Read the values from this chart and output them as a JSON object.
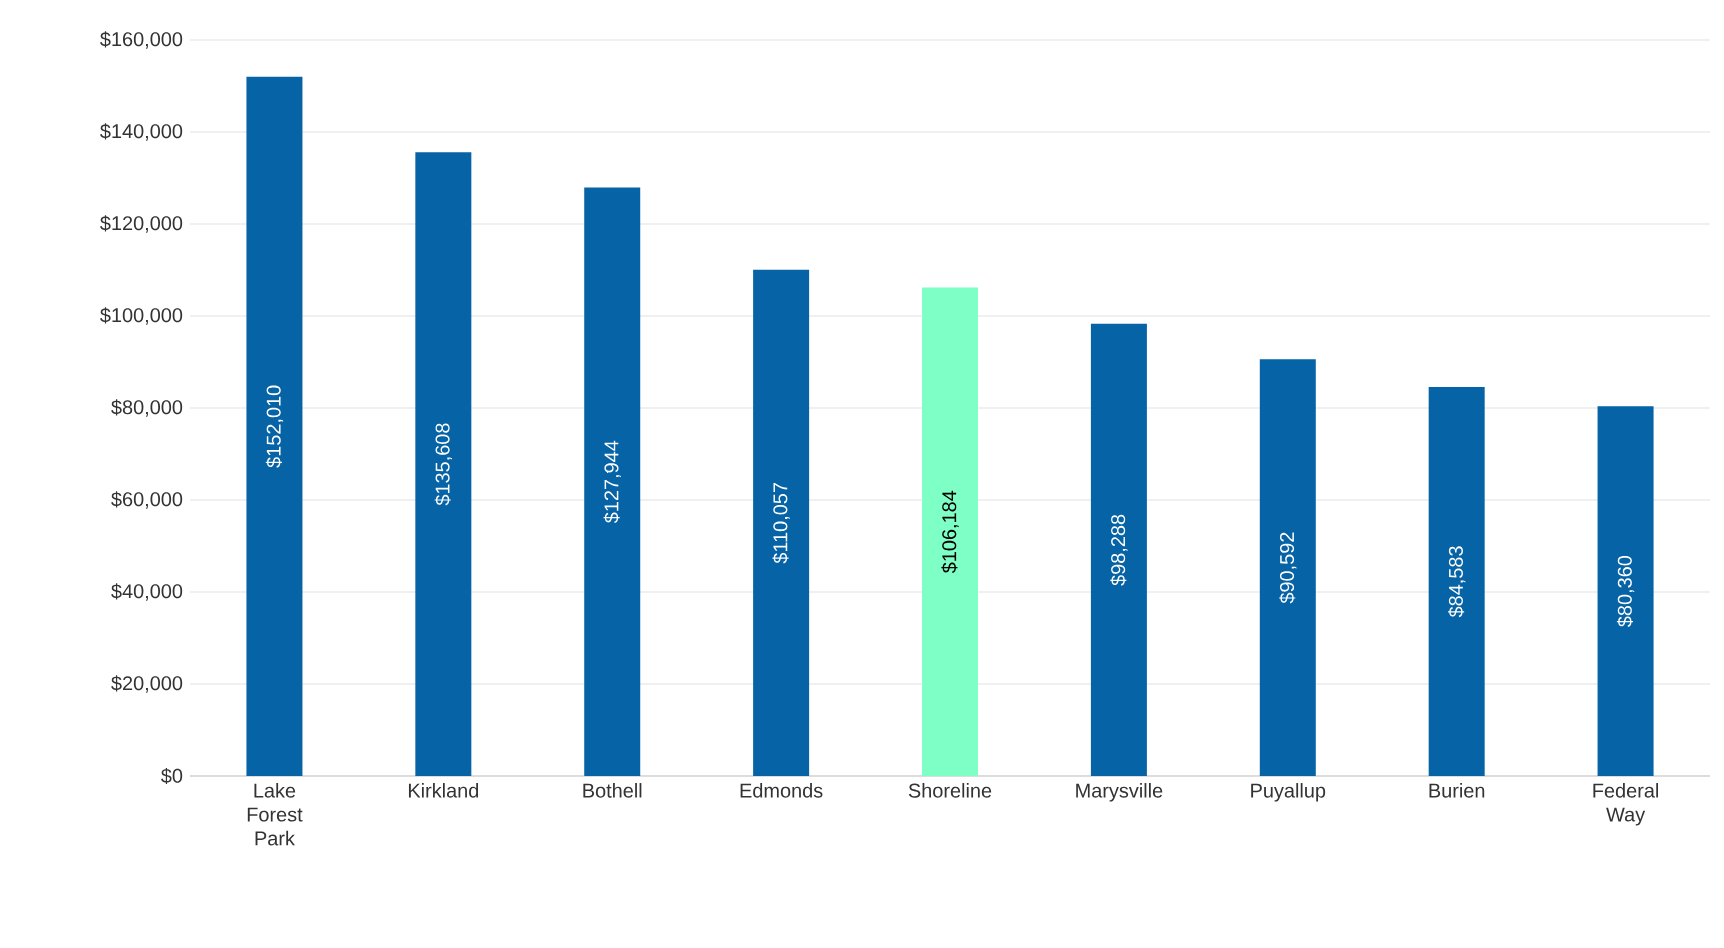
{
  "chart_data": {
    "type": "bar",
    "categories": [
      "Lake Forest Park",
      "Kirkland",
      "Bothell",
      "Edmonds",
      "Shoreline",
      "Marysville",
      "Puyallup",
      "Burien",
      "Federal Way"
    ],
    "values": [
      152010,
      135608,
      127944,
      110057,
      106184,
      98288,
      90592,
      84583,
      80360
    ],
    "value_labels": [
      "$152,010",
      "$135,608",
      "$127,944",
      "$110,057",
      "$106,184",
      "$98,288",
      "$90,592",
      "$84,583",
      "$80,360"
    ],
    "colors": [
      "#0563a6",
      "#0563a6",
      "#0563a6",
      "#0563a6",
      "#7effc5",
      "#0563a6",
      "#0563a6",
      "#0563a6",
      "#0563a6"
    ],
    "ylim": [
      0,
      160000
    ],
    "yticks": [
      {
        "value": 0,
        "label": "$0"
      },
      {
        "value": 20000,
        "label": "$20,000"
      },
      {
        "value": 40000,
        "label": "$40,000"
      },
      {
        "value": 60000,
        "label": "$60,000"
      },
      {
        "value": 80000,
        "label": "$80,000"
      },
      {
        "value": 100000,
        "label": "$100,000"
      },
      {
        "value": 120000,
        "label": "$120,000"
      },
      {
        "value": 140000,
        "label": "$140,000"
      },
      {
        "value": 160000,
        "label": "$160,000"
      }
    ],
    "grid": "y"
  }
}
